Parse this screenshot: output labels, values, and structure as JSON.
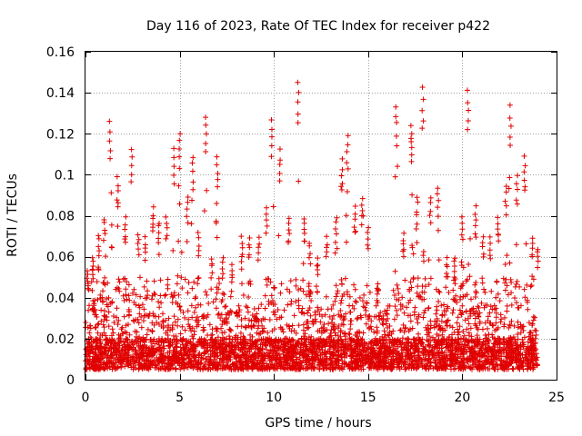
{
  "chart_data": {
    "type": "scatter",
    "title": "Day 116 of 2023, Rate Of TEC Index for receiver p422",
    "xlabel": "GPS time / hours",
    "ylabel": "ROTI / TECUs",
    "xlim": [
      0,
      25
    ],
    "ylim": [
      0,
      0.16
    ],
    "x_ticks": [
      0,
      5,
      10,
      15,
      20,
      25
    ],
    "x_tick_labels": [
      "0",
      "5",
      "10",
      "15",
      "20",
      "25"
    ],
    "y_ticks": [
      0,
      0.02,
      0.04,
      0.06,
      0.08,
      0.1,
      0.12,
      0.14,
      0.16
    ],
    "y_tick_labels": [
      "0",
      "0.02",
      "0.04",
      "0.06",
      "0.08",
      "0.1",
      "0.12",
      "0.14",
      "0.16"
    ],
    "grid": true,
    "legend": "none",
    "marker": "plus",
    "marker_color": "#e00000",
    "data_x_range": [
      0,
      24
    ],
    "baseline_min": 0.005,
    "peaks": [
      {
        "x": 0.1,
        "y": 0.055
      },
      {
        "x": 0.4,
        "y": 0.06
      },
      {
        "x": 0.7,
        "y": 0.072
      },
      {
        "x": 1.0,
        "y": 0.08
      },
      {
        "x": 1.3,
        "y": 0.127
      },
      {
        "x": 1.7,
        "y": 0.1
      },
      {
        "x": 2.1,
        "y": 0.08
      },
      {
        "x": 2.45,
        "y": 0.113
      },
      {
        "x": 2.8,
        "y": 0.072
      },
      {
        "x": 3.2,
        "y": 0.07
      },
      {
        "x": 3.6,
        "y": 0.085
      },
      {
        "x": 3.9,
        "y": 0.078
      },
      {
        "x": 4.3,
        "y": 0.08
      },
      {
        "x": 4.7,
        "y": 0.113
      },
      {
        "x": 5.0,
        "y": 0.122
      },
      {
        "x": 5.4,
        "y": 0.09
      },
      {
        "x": 5.7,
        "y": 0.11
      },
      {
        "x": 6.0,
        "y": 0.072
      },
      {
        "x": 6.4,
        "y": 0.13
      },
      {
        "x": 6.7,
        "y": 0.06
      },
      {
        "x": 7.0,
        "y": 0.11
      },
      {
        "x": 7.3,
        "y": 0.06
      },
      {
        "x": 7.8,
        "y": 0.057
      },
      {
        "x": 8.3,
        "y": 0.07
      },
      {
        "x": 8.7,
        "y": 0.07
      },
      {
        "x": 9.2,
        "y": 0.07
      },
      {
        "x": 9.6,
        "y": 0.085
      },
      {
        "x": 9.9,
        "y": 0.128
      },
      {
        "x": 10.3,
        "y": 0.113
      },
      {
        "x": 10.8,
        "y": 0.08
      },
      {
        "x": 11.3,
        "y": 0.146
      },
      {
        "x": 11.6,
        "y": 0.08
      },
      {
        "x": 11.9,
        "y": 0.068
      },
      {
        "x": 12.3,
        "y": 0.06
      },
      {
        "x": 12.8,
        "y": 0.07
      },
      {
        "x": 13.3,
        "y": 0.08
      },
      {
        "x": 13.6,
        "y": 0.108
      },
      {
        "x": 13.9,
        "y": 0.12
      },
      {
        "x": 14.3,
        "y": 0.085
      },
      {
        "x": 14.7,
        "y": 0.09
      },
      {
        "x": 15.0,
        "y": 0.075
      },
      {
        "x": 15.5,
        "y": 0.045
      },
      {
        "x": 16.0,
        "y": 0.035
      },
      {
        "x": 16.5,
        "y": 0.135
      },
      {
        "x": 16.9,
        "y": 0.072
      },
      {
        "x": 17.3,
        "y": 0.124
      },
      {
        "x": 17.6,
        "y": 0.09
      },
      {
        "x": 17.9,
        "y": 0.143
      },
      {
        "x": 18.3,
        "y": 0.09
      },
      {
        "x": 18.7,
        "y": 0.095
      },
      {
        "x": 19.2,
        "y": 0.06
      },
      {
        "x": 19.6,
        "y": 0.06
      },
      {
        "x": 20.0,
        "y": 0.08
      },
      {
        "x": 20.3,
        "y": 0.142
      },
      {
        "x": 20.7,
        "y": 0.085
      },
      {
        "x": 21.1,
        "y": 0.07
      },
      {
        "x": 21.5,
        "y": 0.07
      },
      {
        "x": 21.9,
        "y": 0.08
      },
      {
        "x": 22.3,
        "y": 0.095
      },
      {
        "x": 22.55,
        "y": 0.134
      },
      {
        "x": 22.9,
        "y": 0.1
      },
      {
        "x": 23.3,
        "y": 0.11
      },
      {
        "x": 23.7,
        "y": 0.07
      },
      {
        "x": 24.0,
        "y": 0.065
      }
    ]
  }
}
